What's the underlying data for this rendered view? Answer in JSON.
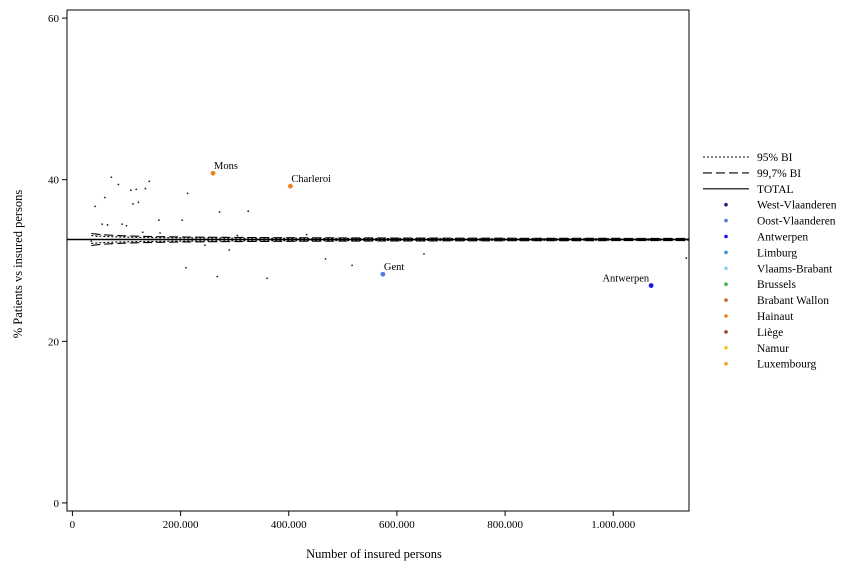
{
  "chart_data": {
    "type": "scatter",
    "xlabel": "Number of insured persons",
    "ylabel": "% Patients vs insured persons",
    "xlim": [
      -10000,
      1140000
    ],
    "ylim": [
      -1,
      61
    ],
    "xticks": [
      0,
      200000,
      400000,
      600000,
      800000,
      1000000
    ],
    "xtick_labels": [
      "0",
      "200.000",
      "400.000",
      "600.000",
      "800.000",
      "1.000.000"
    ],
    "yticks": [
      0,
      20,
      40,
      60
    ],
    "ytick_labels": [
      "0",
      "20",
      "40",
      "60"
    ],
    "grid": false,
    "legend_position": "right",
    "total_mean": 32.6,
    "lines": [
      {
        "name": "95% BI",
        "style": "dotted",
        "color": "#000000",
        "x_start": 35000,
        "x_end": 1140000,
        "z": 1.96,
        "which": "both"
      },
      {
        "name": "99,7% BI",
        "style": "dashed",
        "color": "#000000",
        "x_start": 35000,
        "x_end": 1140000,
        "z": 3.0,
        "which": "both"
      },
      {
        "name": "TOTAL",
        "style": "solid",
        "color": "#000000",
        "value": 32.6
      }
    ],
    "legend_markers": [
      {
        "name": "West-Vlaanderen",
        "color": "#1a237e"
      },
      {
        "name": "Oost-Vlaanderen",
        "color": "#4f7cdc"
      },
      {
        "name": "Antwerpen",
        "color": "#1515e8"
      },
      {
        "name": "Limburg",
        "color": "#3a8fe0"
      },
      {
        "name": "Vlaams-Brabant",
        "color": "#8cd0f5"
      },
      {
        "name": "Brussels",
        "color": "#3fb24a"
      },
      {
        "name": "Brabant Wallon",
        "color": "#c06a30"
      },
      {
        "name": "Hainaut",
        "color": "#f0821e"
      },
      {
        "name": "Liège",
        "color": "#9a4a2a"
      },
      {
        "name": "Namur",
        "color": "#f5c518"
      },
      {
        "name": "Luxembourg",
        "color": "#f0a030"
      }
    ],
    "highlighted_points": [
      {
        "label": "Mons",
        "x": 260000,
        "y": 40.8,
        "color": "#f0821e"
      },
      {
        "label": "Charleroi",
        "x": 403000,
        "y": 39.2,
        "color": "#f0821e"
      },
      {
        "label": "Gent",
        "x": 574000,
        "y": 28.3,
        "color": "#4f7cdc"
      },
      {
        "label": "Antwerpen",
        "x": 1070000,
        "y": 26.9,
        "color": "#1515e8"
      }
    ],
    "small_points": [
      {
        "x": 35000,
        "y": 32.4
      },
      {
        "x": 42000,
        "y": 36.7
      },
      {
        "x": 45000,
        "y": 33.0
      },
      {
        "x": 55000,
        "y": 34.5
      },
      {
        "x": 60000,
        "y": 37.8
      },
      {
        "x": 65000,
        "y": 34.4
      },
      {
        "x": 72000,
        "y": 40.3
      },
      {
        "x": 85000,
        "y": 39.4
      },
      {
        "x": 92000,
        "y": 34.5
      },
      {
        "x": 100000,
        "y": 34.3
      },
      {
        "x": 108000,
        "y": 38.7
      },
      {
        "x": 112000,
        "y": 37.0
      },
      {
        "x": 118000,
        "y": 38.8
      },
      {
        "x": 122000,
        "y": 37.2
      },
      {
        "x": 130000,
        "y": 33.5
      },
      {
        "x": 135000,
        "y": 38.9
      },
      {
        "x": 142000,
        "y": 39.8
      },
      {
        "x": 160000,
        "y": 35.0
      },
      {
        "x": 162000,
        "y": 33.4
      },
      {
        "x": 203000,
        "y": 35.0
      },
      {
        "x": 210000,
        "y": 29.1
      },
      {
        "x": 213000,
        "y": 38.3
      },
      {
        "x": 245000,
        "y": 31.9
      },
      {
        "x": 268000,
        "y": 28.0
      },
      {
        "x": 272000,
        "y": 36.0
      },
      {
        "x": 290000,
        "y": 31.3
      },
      {
        "x": 305000,
        "y": 33.1
      },
      {
        "x": 325000,
        "y": 36.1
      },
      {
        "x": 360000,
        "y": 27.8
      },
      {
        "x": 405000,
        "y": 32.5
      },
      {
        "x": 433000,
        "y": 33.2
      },
      {
        "x": 468000,
        "y": 30.2
      },
      {
        "x": 517000,
        "y": 29.4
      },
      {
        "x": 650000,
        "y": 30.8
      },
      {
        "x": 1135000,
        "y": 30.3
      }
    ]
  }
}
